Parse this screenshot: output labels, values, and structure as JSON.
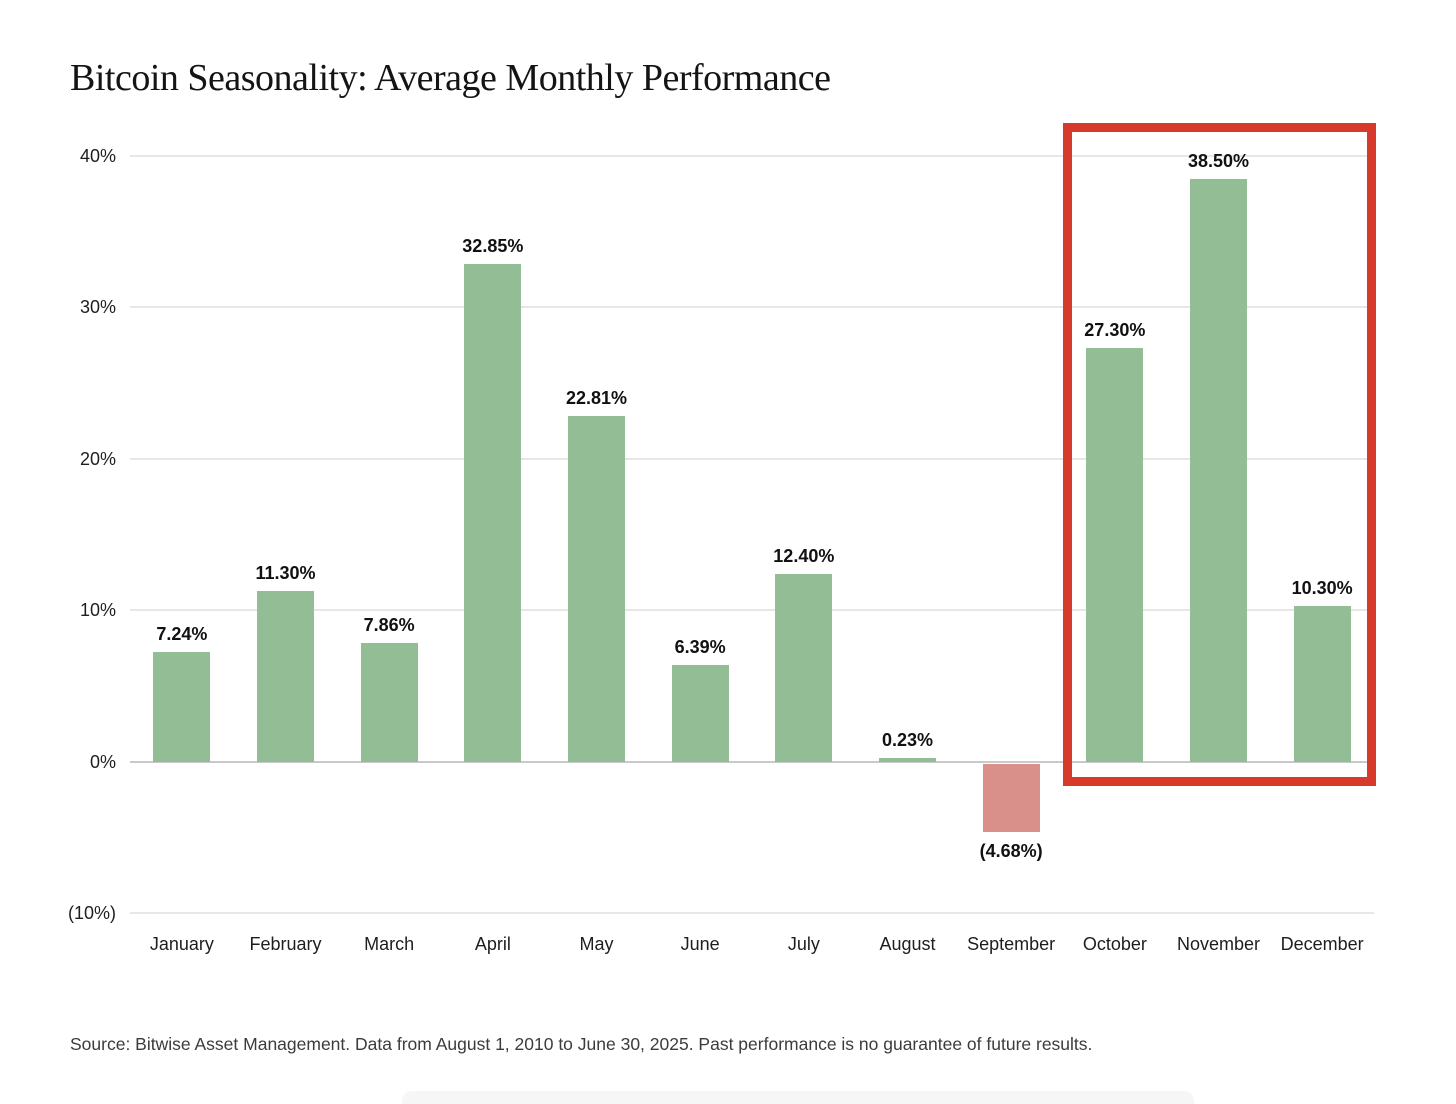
{
  "header": {
    "title": "Bitcoin Seasonality: Average Monthly Performance"
  },
  "chart_data": {
    "type": "bar",
    "title": "Bitcoin Seasonality: Average Monthly Performance",
    "categories": [
      "January",
      "February",
      "March",
      "April",
      "May",
      "June",
      "July",
      "August",
      "September",
      "October",
      "November",
      "December"
    ],
    "values": [
      7.24,
      11.3,
      7.86,
      32.85,
      22.81,
      6.39,
      12.4,
      0.23,
      -4.68,
      27.3,
      38.5,
      10.3
    ],
    "value_labels": [
      "7.24%",
      "11.30%",
      "7.86%",
      "32.85%",
      "22.81%",
      "6.39%",
      "12.40%",
      "0.23%",
      "(4.68%)",
      "27.30%",
      "38.50%",
      "10.30%"
    ],
    "xlabel": "",
    "ylabel": "",
    "ylim": [
      -10,
      40
    ],
    "y_ticks": [
      {
        "value": 40,
        "label": "40%"
      },
      {
        "value": 30,
        "label": "30%"
      },
      {
        "value": 20,
        "label": "20%"
      },
      {
        "value": 10,
        "label": "10%"
      },
      {
        "value": 0,
        "label": "0%"
      },
      {
        "value": -10,
        "label": "(10%)"
      }
    ],
    "grid": "horizontal",
    "legend": "none",
    "colors": {
      "bar_positive": "#93bd94",
      "bar_negative": "#d9908b",
      "highlight_border": "#d7392b",
      "grid_line": "#e7e7e7",
      "zero_line": "#c9c9c9"
    },
    "highlight": {
      "months": [
        "October",
        "November",
        "December"
      ]
    }
  },
  "footer": {
    "source": "Source: Bitwise Asset Management. Data from August 1, 2010 to June 30, 2025. Past performance is no guarantee of future results."
  }
}
